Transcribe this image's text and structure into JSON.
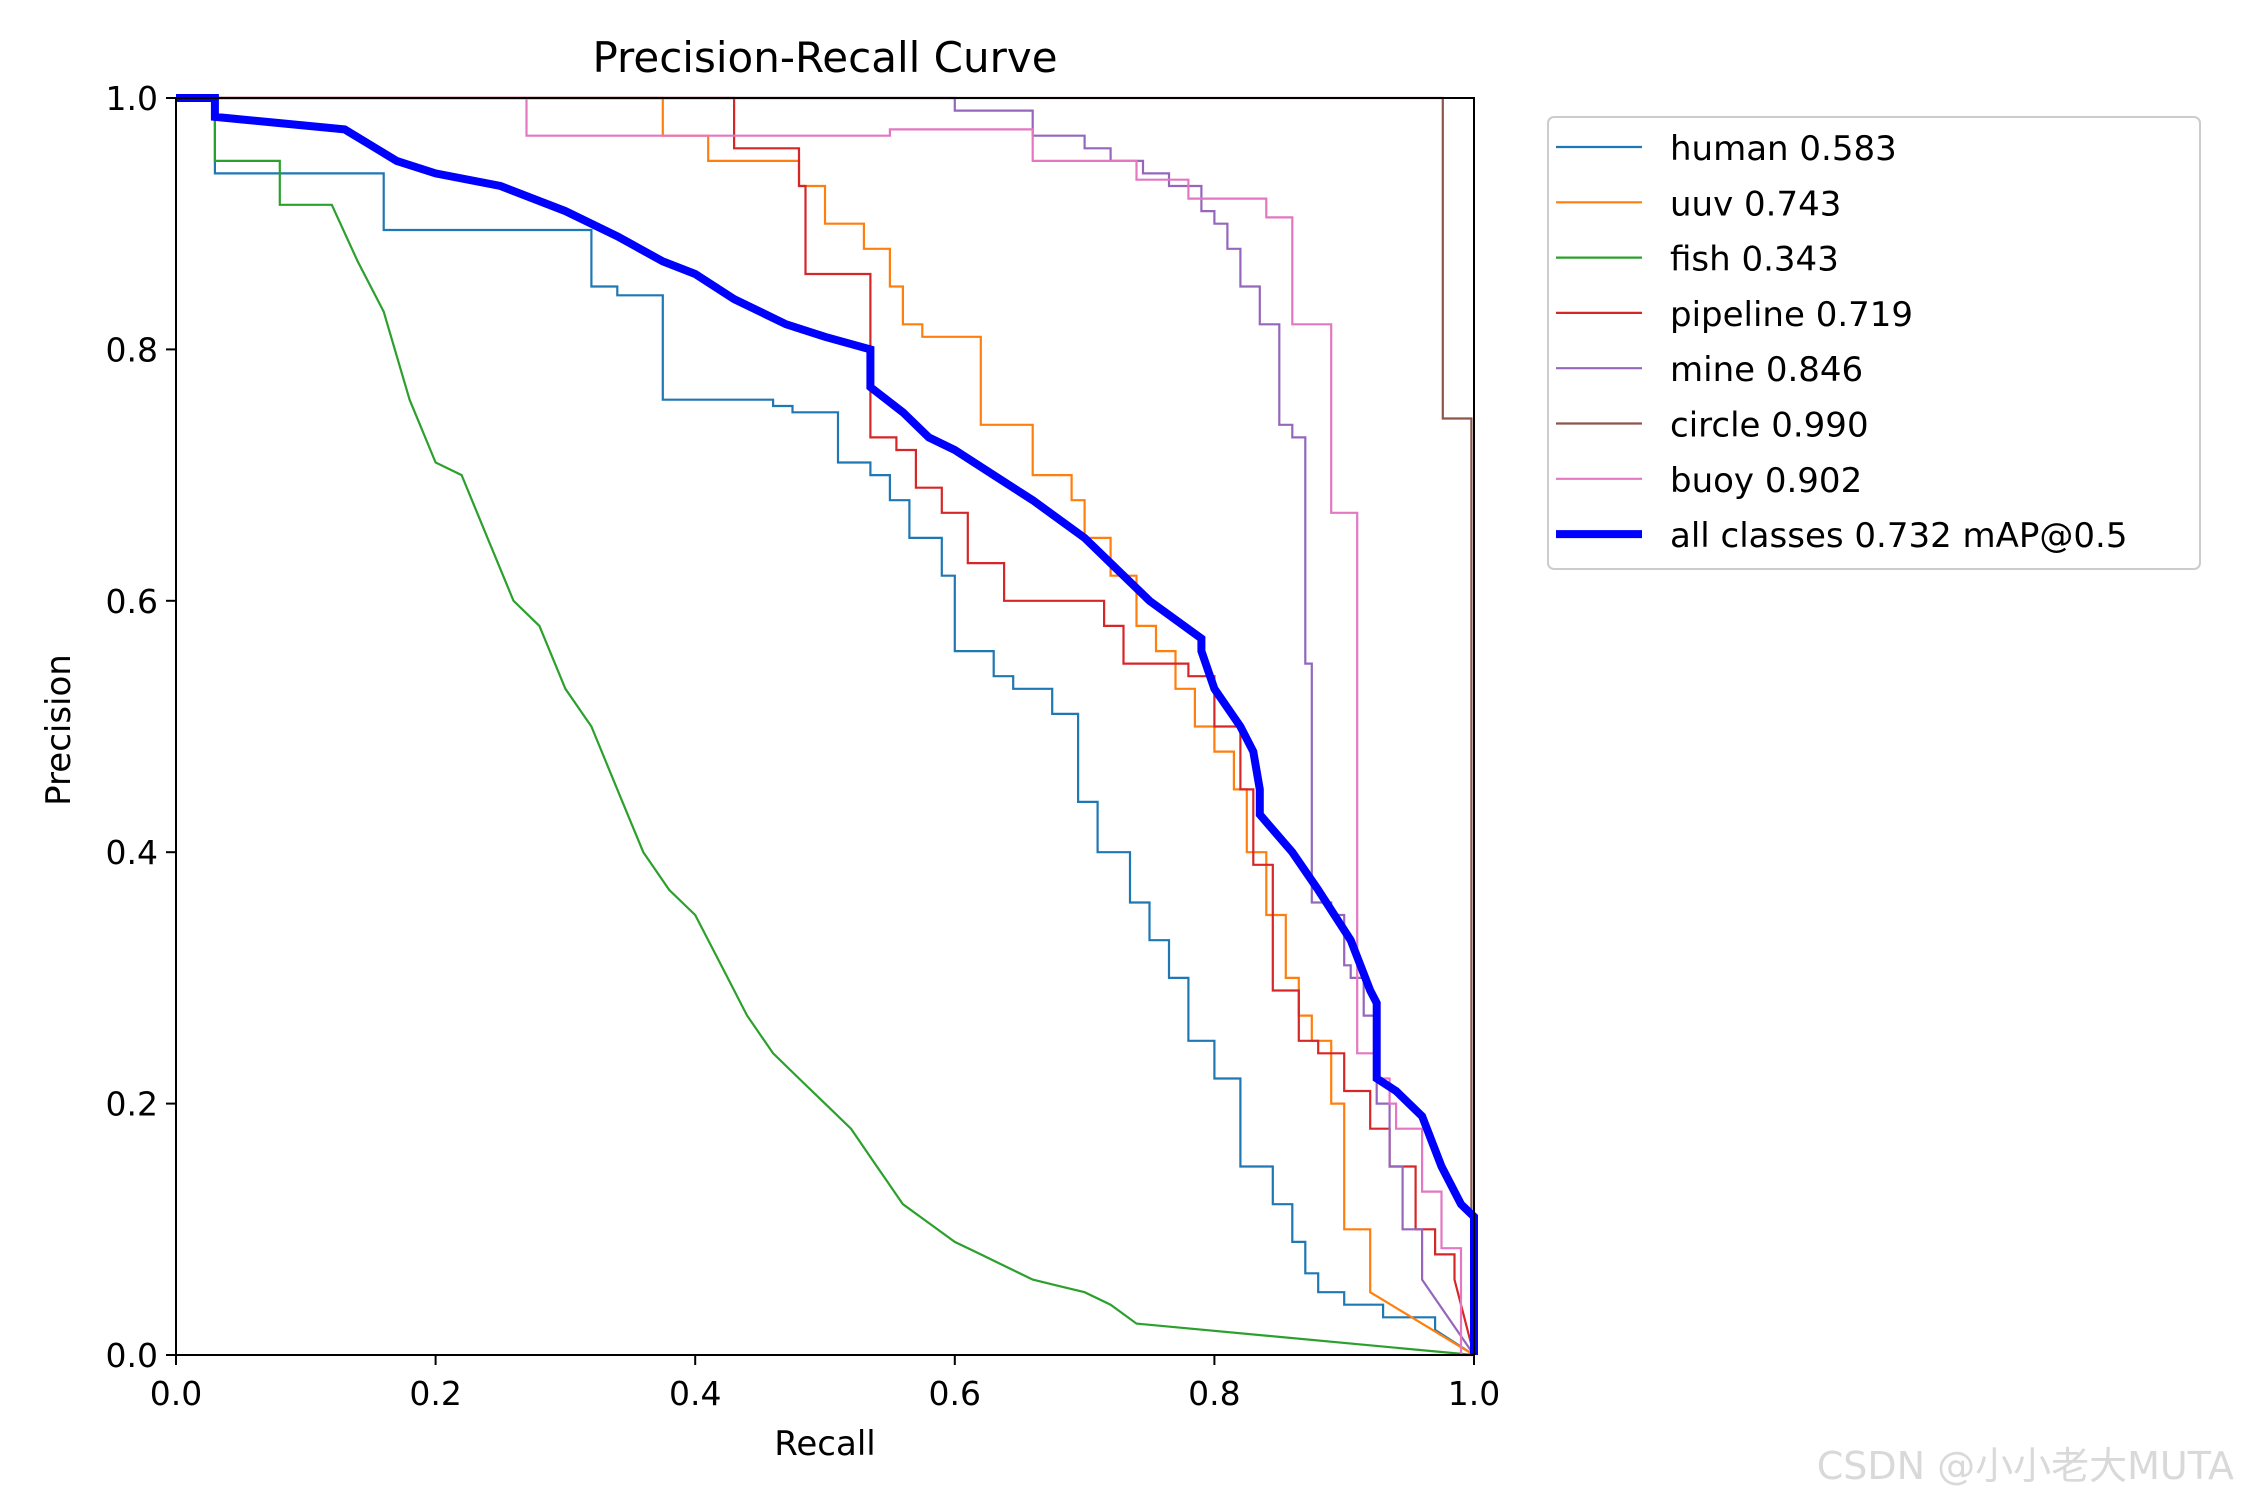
{
  "chart_data": {
    "type": "line",
    "title": "Precision-Recall Curve",
    "xlabel": "Recall",
    "ylabel": "Precision",
    "xlim": [
      0,
      1
    ],
    "ylim": [
      0,
      1
    ],
    "xticks": [
      "0.0",
      "0.2",
      "0.4",
      "0.6",
      "0.8",
      "1.0"
    ],
    "yticks": [
      "0.0",
      "0.2",
      "0.4",
      "0.6",
      "0.8",
      "1.0"
    ],
    "grid": false,
    "legend_position": "outside-top-right",
    "series": [
      {
        "name": "human",
        "label": "human 0.583",
        "color": "#1f77b4",
        "width": "thin",
        "x": [
          0,
          0.03,
          0.03,
          0.16,
          0.16,
          0.32,
          0.32,
          0.34,
          0.34,
          0.375,
          0.375,
          0.46,
          0.46,
          0.475,
          0.475,
          0.51,
          0.51,
          0.535,
          0.535,
          0.55,
          0.55,
          0.565,
          0.565,
          0.59,
          0.59,
          0.6,
          0.6,
          0.63,
          0.63,
          0.645,
          0.645,
          0.675,
          0.675,
          0.695,
          0.695,
          0.71,
          0.71,
          0.735,
          0.735,
          0.75,
          0.75,
          0.765,
          0.765,
          0.78,
          0.78,
          0.8,
          0.8,
          0.82,
          0.82,
          0.845,
          0.845,
          0.86,
          0.86,
          0.87,
          0.87,
          0.88,
          0.88,
          0.9,
          0.9,
          0.93,
          0.93,
          0.97,
          0.97,
          1.0
        ],
        "y": [
          1.0,
          1.0,
          0.94,
          0.94,
          0.895,
          0.895,
          0.85,
          0.85,
          0.843,
          0.843,
          0.76,
          0.76,
          0.755,
          0.755,
          0.75,
          0.75,
          0.71,
          0.71,
          0.7,
          0.7,
          0.68,
          0.68,
          0.65,
          0.65,
          0.62,
          0.62,
          0.56,
          0.56,
          0.54,
          0.54,
          0.53,
          0.53,
          0.51,
          0.51,
          0.44,
          0.44,
          0.4,
          0.4,
          0.36,
          0.36,
          0.33,
          0.33,
          0.3,
          0.3,
          0.25,
          0.25,
          0.22,
          0.22,
          0.15,
          0.15,
          0.12,
          0.12,
          0.09,
          0.09,
          0.065,
          0.065,
          0.05,
          0.05,
          0.04,
          0.04,
          0.03,
          0.03,
          0.02,
          0.0
        ]
      },
      {
        "name": "uuv",
        "label": "uuv 0.743",
        "color": "#ff7f0e",
        "width": "thin",
        "x": [
          0,
          0.375,
          0.375,
          0.41,
          0.41,
          0.48,
          0.48,
          0.5,
          0.5,
          0.53,
          0.53,
          0.55,
          0.55,
          0.56,
          0.56,
          0.575,
          0.575,
          0.62,
          0.62,
          0.66,
          0.66,
          0.69,
          0.69,
          0.7,
          0.7,
          0.72,
          0.72,
          0.74,
          0.74,
          0.755,
          0.755,
          0.77,
          0.77,
          0.785,
          0.785,
          0.8,
          0.8,
          0.815,
          0.815,
          0.825,
          0.825,
          0.84,
          0.84,
          0.855,
          0.855,
          0.865,
          0.865,
          0.875,
          0.875,
          0.89,
          0.89,
          0.9,
          0.9,
          0.92,
          0.92,
          1.0
        ],
        "y": [
          1.0,
          1.0,
          0.97,
          0.97,
          0.95,
          0.95,
          0.93,
          0.93,
          0.9,
          0.9,
          0.88,
          0.88,
          0.85,
          0.85,
          0.82,
          0.82,
          0.81,
          0.81,
          0.74,
          0.74,
          0.7,
          0.7,
          0.68,
          0.68,
          0.65,
          0.65,
          0.62,
          0.62,
          0.58,
          0.58,
          0.56,
          0.56,
          0.53,
          0.53,
          0.5,
          0.5,
          0.48,
          0.48,
          0.45,
          0.45,
          0.4,
          0.4,
          0.35,
          0.35,
          0.3,
          0.3,
          0.27,
          0.27,
          0.25,
          0.25,
          0.2,
          0.2,
          0.1,
          0.1,
          0.05,
          0.0
        ]
      },
      {
        "name": "fish",
        "label": "fish 0.343",
        "color": "#2ca02c",
        "width": "thin",
        "x": [
          0,
          0.03,
          0.03,
          0.08,
          0.08,
          0.12,
          0.14,
          0.16,
          0.18,
          0.2,
          0.22,
          0.24,
          0.26,
          0.28,
          0.3,
          0.32,
          0.34,
          0.36,
          0.38,
          0.4,
          0.42,
          0.44,
          0.46,
          0.48,
          0.5,
          0.52,
          0.54,
          0.56,
          0.58,
          0.6,
          0.62,
          0.64,
          0.66,
          0.68,
          0.7,
          0.72,
          0.74,
          1.0
        ],
        "y": [
          1.0,
          1.0,
          0.95,
          0.95,
          0.915,
          0.915,
          0.87,
          0.83,
          0.76,
          0.71,
          0.7,
          0.65,
          0.6,
          0.58,
          0.53,
          0.5,
          0.45,
          0.4,
          0.37,
          0.35,
          0.31,
          0.27,
          0.24,
          0.22,
          0.2,
          0.18,
          0.15,
          0.12,
          0.105,
          0.09,
          0.08,
          0.07,
          0.06,
          0.055,
          0.05,
          0.04,
          0.025,
          0.0
        ]
      },
      {
        "name": "pipeline",
        "label": "pipeline 0.719",
        "color": "#d62728",
        "width": "thin",
        "x": [
          0,
          0.43,
          0.43,
          0.48,
          0.48,
          0.485,
          0.485,
          0.535,
          0.535,
          0.555,
          0.555,
          0.57,
          0.57,
          0.59,
          0.59,
          0.61,
          0.61,
          0.638,
          0.638,
          0.715,
          0.715,
          0.73,
          0.73,
          0.78,
          0.78,
          0.8,
          0.8,
          0.82,
          0.82,
          0.83,
          0.83,
          0.845,
          0.845,
          0.865,
          0.865,
          0.88,
          0.88,
          0.9,
          0.9,
          0.92,
          0.92,
          0.935,
          0.935,
          0.955,
          0.955,
          0.97,
          0.97,
          0.985,
          0.985,
          1.0
        ],
        "y": [
          1.0,
          1.0,
          0.96,
          0.96,
          0.93,
          0.93,
          0.86,
          0.86,
          0.73,
          0.73,
          0.72,
          0.72,
          0.69,
          0.69,
          0.67,
          0.67,
          0.63,
          0.63,
          0.6,
          0.6,
          0.58,
          0.58,
          0.55,
          0.55,
          0.54,
          0.54,
          0.5,
          0.5,
          0.45,
          0.45,
          0.39,
          0.39,
          0.29,
          0.29,
          0.25,
          0.25,
          0.24,
          0.24,
          0.21,
          0.21,
          0.18,
          0.18,
          0.15,
          0.15,
          0.1,
          0.1,
          0.08,
          0.08,
          0.06,
          0.0
        ]
      },
      {
        "name": "mine",
        "label": "mine 0.846",
        "color": "#9467bd",
        "width": "thin",
        "x": [
          0,
          0.6,
          0.6,
          0.66,
          0.66,
          0.7,
          0.7,
          0.72,
          0.72,
          0.745,
          0.745,
          0.765,
          0.765,
          0.79,
          0.79,
          0.8,
          0.8,
          0.81,
          0.81,
          0.82,
          0.82,
          0.835,
          0.835,
          0.85,
          0.85,
          0.85,
          0.86,
          0.86,
          0.87,
          0.87,
          0.875,
          0.875,
          0.875,
          0.89,
          0.89,
          0.9,
          0.9,
          0.905,
          0.905,
          0.915,
          0.915,
          0.925,
          0.925,
          0.935,
          0.935,
          0.945,
          0.945,
          0.96,
          0.96,
          1.0
        ],
        "y": [
          1.0,
          1.0,
          0.99,
          0.99,
          0.97,
          0.97,
          0.96,
          0.96,
          0.95,
          0.95,
          0.94,
          0.94,
          0.93,
          0.93,
          0.91,
          0.91,
          0.9,
          0.9,
          0.88,
          0.88,
          0.85,
          0.85,
          0.82,
          0.82,
          0.79,
          0.74,
          0.74,
          0.73,
          0.73,
          0.55,
          0.55,
          0.4,
          0.36,
          0.36,
          0.35,
          0.35,
          0.31,
          0.31,
          0.3,
          0.3,
          0.27,
          0.27,
          0.2,
          0.2,
          0.15,
          0.15,
          0.1,
          0.1,
          0.06,
          0.0
        ]
      },
      {
        "name": "circle",
        "label": "circle 0.990",
        "color": "#8c564b",
        "width": "thin",
        "x": [
          0,
          0.976,
          0.976,
          0.998,
          0.998,
          1.0
        ],
        "y": [
          1.0,
          1.0,
          0.745,
          0.745,
          0.0,
          0.0
        ]
      },
      {
        "name": "buoy",
        "label": "buoy 0.902",
        "color": "#e377c2",
        "width": "thin",
        "x": [
          0,
          0.27,
          0.27,
          0.55,
          0.55,
          0.66,
          0.66,
          0.74,
          0.74,
          0.78,
          0.78,
          0.84,
          0.84,
          0.86,
          0.86,
          0.89,
          0.89,
          0.91,
          0.91,
          0.925,
          0.925,
          0.935,
          0.935,
          0.94,
          0.94,
          0.96,
          0.96,
          0.975,
          0.975,
          0.99,
          0.99,
          1.0
        ],
        "y": [
          1.0,
          1.0,
          0.97,
          0.97,
          0.975,
          0.975,
          0.95,
          0.95,
          0.935,
          0.935,
          0.92,
          0.92,
          0.905,
          0.905,
          0.82,
          0.82,
          0.67,
          0.67,
          0.24,
          0.24,
          0.22,
          0.22,
          0.2,
          0.2,
          0.18,
          0.18,
          0.13,
          0.13,
          0.085,
          0.085,
          0.0,
          0.0
        ]
      },
      {
        "name": "all-classes",
        "label": "all classes 0.732 mAP@0.5",
        "color": "#0000ff",
        "width": "thick",
        "x": [
          0,
          0.03,
          0.03,
          0.08,
          0.13,
          0.17,
          0.2,
          0.25,
          0.3,
          0.34,
          0.375,
          0.4,
          0.43,
          0.47,
          0.5,
          0.535,
          0.535,
          0.56,
          0.58,
          0.6,
          0.63,
          0.66,
          0.7,
          0.72,
          0.75,
          0.79,
          0.79,
          0.8,
          0.82,
          0.83,
          0.835,
          0.835,
          0.86,
          0.88,
          0.905,
          0.92,
          0.925,
          0.925,
          0.94,
          0.96,
          0.975,
          0.99,
          1.0,
          1.0
        ],
        "y": [
          1.0,
          1.0,
          0.985,
          0.98,
          0.975,
          0.95,
          0.94,
          0.93,
          0.91,
          0.89,
          0.87,
          0.86,
          0.84,
          0.82,
          0.81,
          0.8,
          0.77,
          0.75,
          0.73,
          0.72,
          0.7,
          0.68,
          0.65,
          0.63,
          0.6,
          0.57,
          0.56,
          0.53,
          0.5,
          0.48,
          0.45,
          0.43,
          0.4,
          0.37,
          0.33,
          0.29,
          0.28,
          0.22,
          0.21,
          0.19,
          0.15,
          0.12,
          0.11,
          0.0
        ]
      }
    ]
  },
  "watermark": "CSDN @小小老大MUTA"
}
